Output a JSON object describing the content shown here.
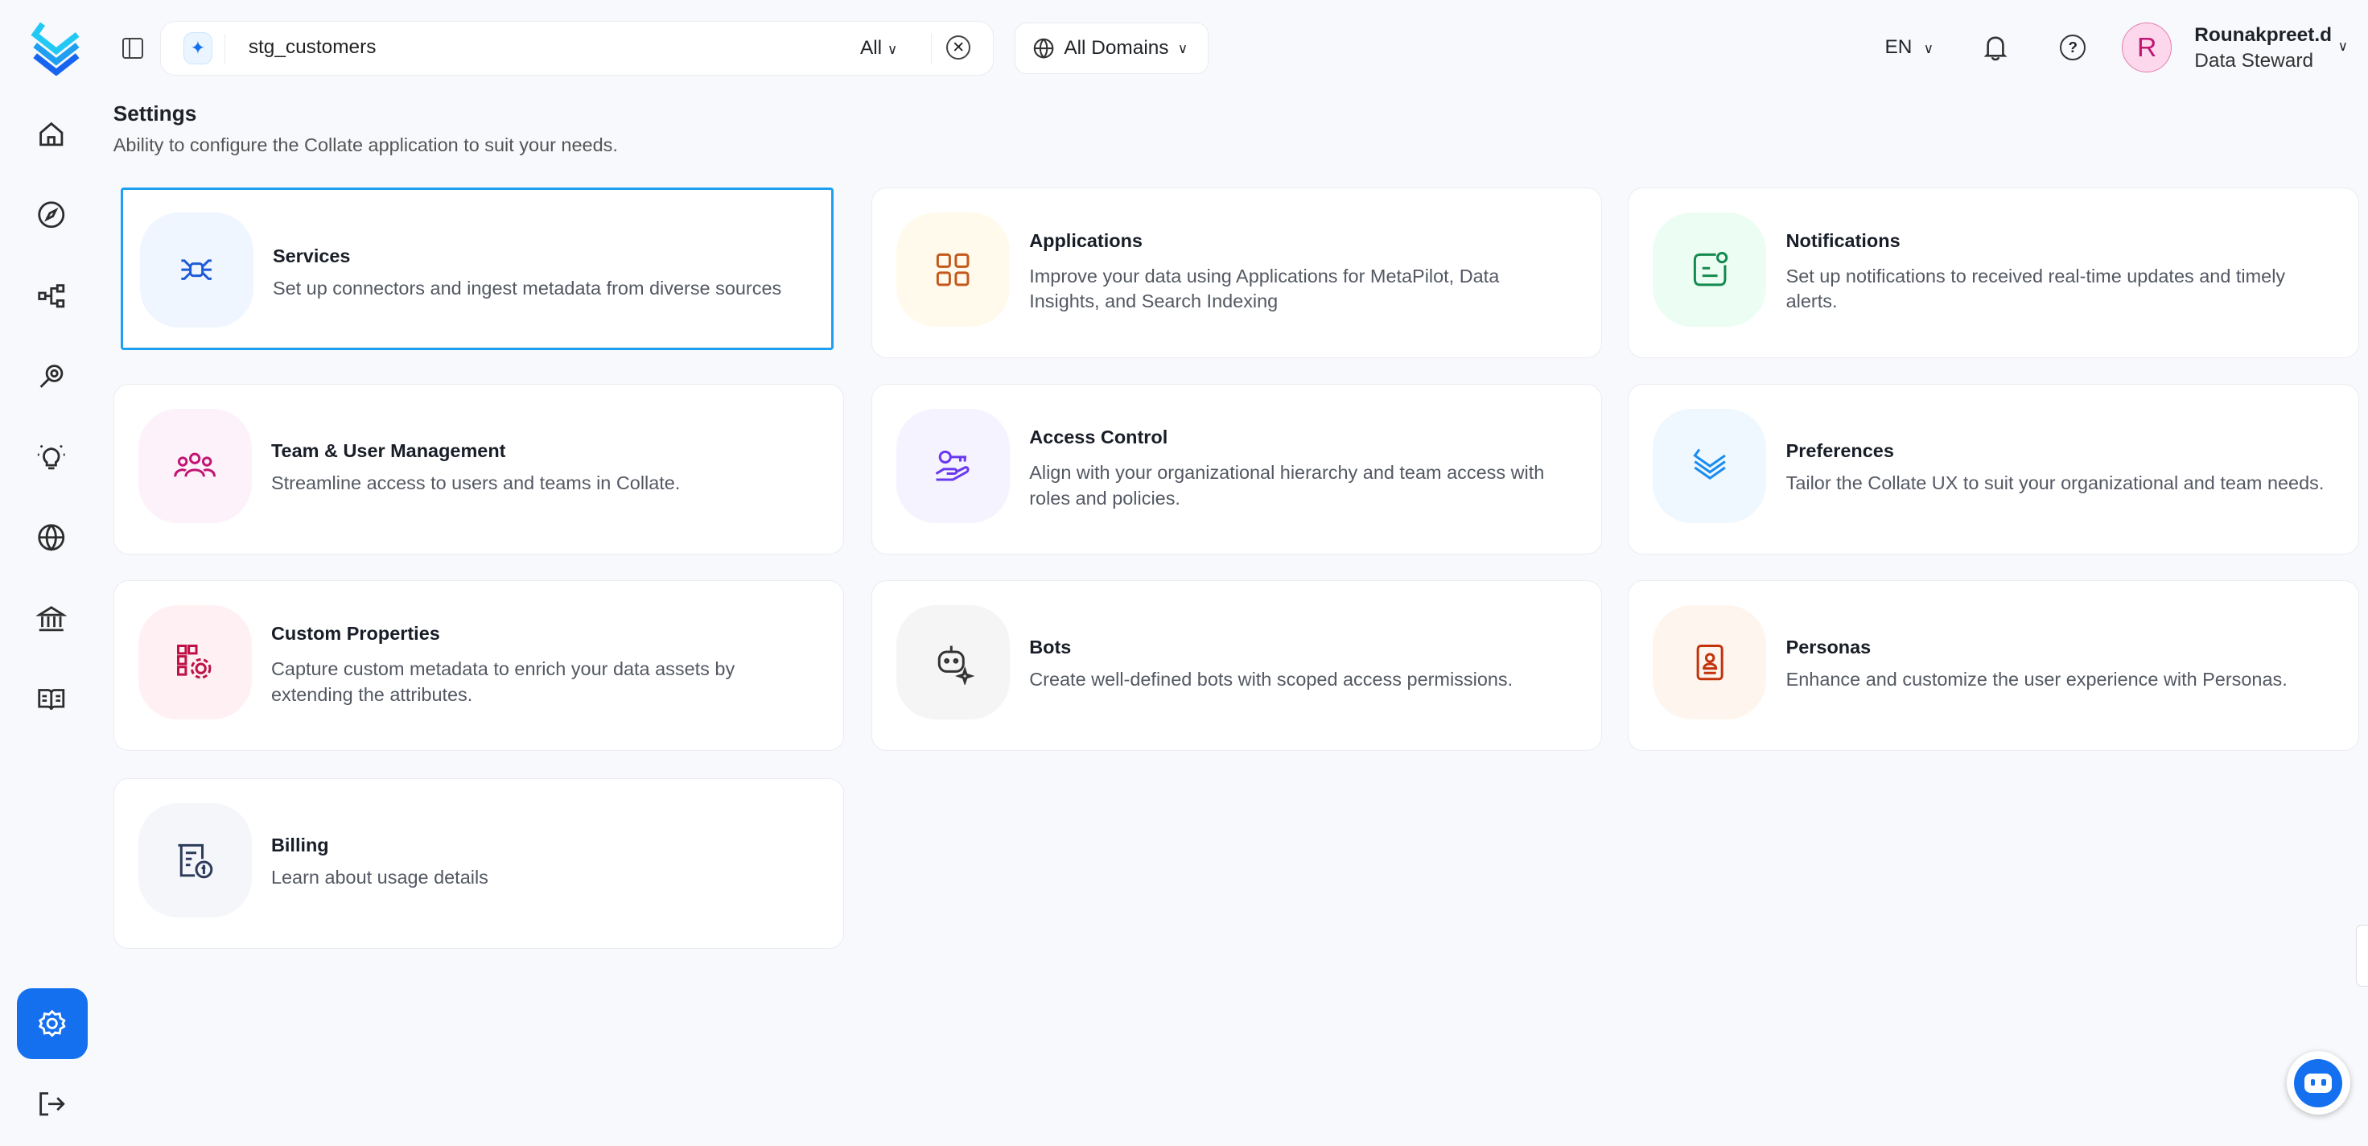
{
  "topbar": {
    "search_value": "stg_customers",
    "search_filter": "All",
    "domains_label": "All Domains",
    "language": "EN",
    "user_name": "Rounakpreet.d",
    "user_role": "Data Steward",
    "avatar_initial": "R"
  },
  "sidebar": {
    "items": [
      {
        "icon": "home-icon"
      },
      {
        "icon": "explore-icon"
      },
      {
        "icon": "lineage-icon"
      },
      {
        "icon": "observability-icon"
      },
      {
        "icon": "insights-icon"
      },
      {
        "icon": "domains-icon"
      },
      {
        "icon": "governance-icon"
      },
      {
        "icon": "glossary-icon"
      },
      {
        "icon": "settings-icon",
        "active": true
      },
      {
        "icon": "logout-icon"
      }
    ]
  },
  "page": {
    "title": "Settings",
    "subtitle": "Ability to configure the Collate application to suit your needs."
  },
  "cards": [
    {
      "title": "Services",
      "desc": "Set up connectors and ingest metadata from diverse sources",
      "icon": "services-icon",
      "bg": "#eff6ff",
      "color": "#1e5bd6"
    },
    {
      "title": "Applications",
      "desc": "Improve your data using Applications for MetaPilot, Data Insights, and Search Indexing",
      "icon": "applications-icon",
      "bg": "#fffaeb",
      "color": "#c4581b"
    },
    {
      "title": "Notifications",
      "desc": "Set up notifications to received real-time updates and timely alerts.",
      "icon": "notifications-icon",
      "bg": "#ecfdf3",
      "color": "#138a4e"
    },
    {
      "title": "Team & User Management",
      "desc": "Streamline access to users and teams in Collate.",
      "icon": "team-icon",
      "bg": "#fdf2fa",
      "color": "#c11574"
    },
    {
      "title": "Access Control",
      "desc": "Align with your organizational hierarchy and team access with roles and policies.",
      "icon": "access-control-icon",
      "bg": "#f4f3ff",
      "color": "#6938ef"
    },
    {
      "title": "Preferences",
      "desc": "Tailor the Collate UX to suit your organizational and team needs.",
      "icon": "preferences-icon",
      "bg": "#eff8ff",
      "color": "#1a8cf0"
    },
    {
      "title": "Custom Properties",
      "desc": "Capture custom metadata to enrich your data assets by extending the attributes.",
      "icon": "custom-properties-icon",
      "bg": "#fff1f3",
      "color": "#c01048"
    },
    {
      "title": "Bots",
      "desc": "Create well-defined bots with scoped access permissions.",
      "icon": "bots-icon",
      "bg": "#f5f5f5",
      "color": "#333333"
    },
    {
      "title": "Personas",
      "desc": "Enhance and customize the user experience with Personas.",
      "icon": "personas-icon",
      "bg": "#fef6ee",
      "color": "#c4320a"
    },
    {
      "title": "Billing",
      "desc": "Learn about usage details",
      "icon": "billing-icon",
      "bg": "#f4f6fa",
      "color": "#2d3a5a"
    }
  ],
  "colors": {
    "accent": "#1570ef",
    "selected_border": "#1ea0f2"
  }
}
